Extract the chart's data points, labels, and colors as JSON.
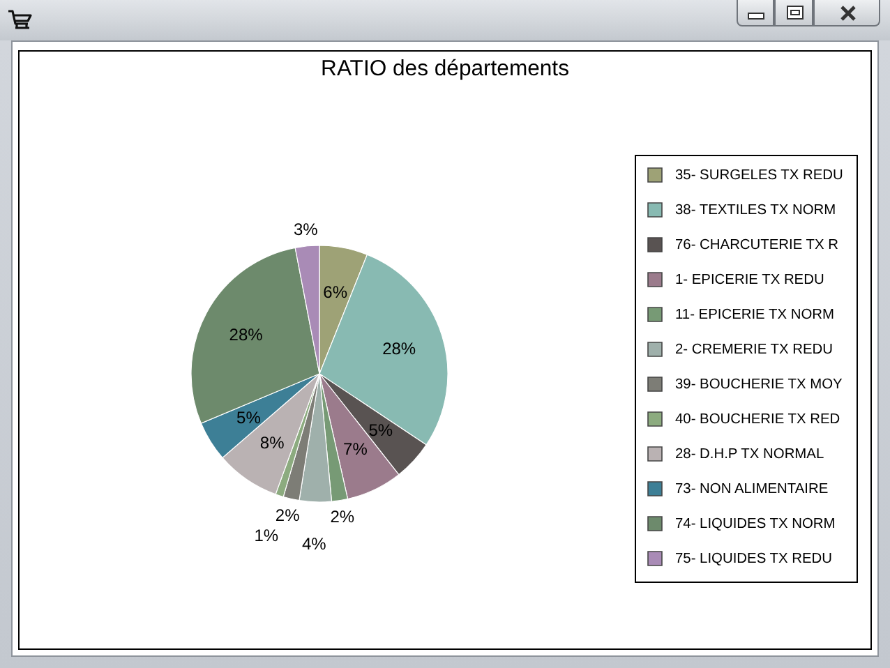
{
  "chart_data": {
    "type": "pie",
    "title": "RATIO des départements",
    "categories": [
      "35- SURGELES TX REDU",
      "38- TEXTILES TX NORM",
      "76- CHARCUTERIE TX R",
      "1- EPICERIE TX REDU",
      "11- EPICERIE TX NORM",
      "2- CREMERIE TX REDU",
      "39- BOUCHERIE TX MOY",
      "40- BOUCHERIE TX RED",
      "28- D.H.P TX NORMAL",
      "73- NON ALIMENTAIRE",
      "74- LIQUIDES TX NORM",
      "75- LIQUIDES TX REDU"
    ],
    "values": [
      6,
      28,
      5,
      7,
      2,
      4,
      2,
      1,
      8,
      5,
      28,
      3
    ],
    "value_labels": [
      "6%",
      "28%",
      "5%",
      "7%",
      "2%",
      "4%",
      "2%",
      "1%",
      "8%",
      "5%",
      "28%",
      "3%"
    ],
    "colors": [
      "#9ea276",
      "#88bab2",
      "#595352",
      "#9b7b8c",
      "#779a75",
      "#9fb0ab",
      "#7d7d76",
      "#8cab7f",
      "#bab2b3",
      "#3d7f96",
      "#6d8a6c",
      "#a98bb6"
    ],
    "legend": "right"
  }
}
